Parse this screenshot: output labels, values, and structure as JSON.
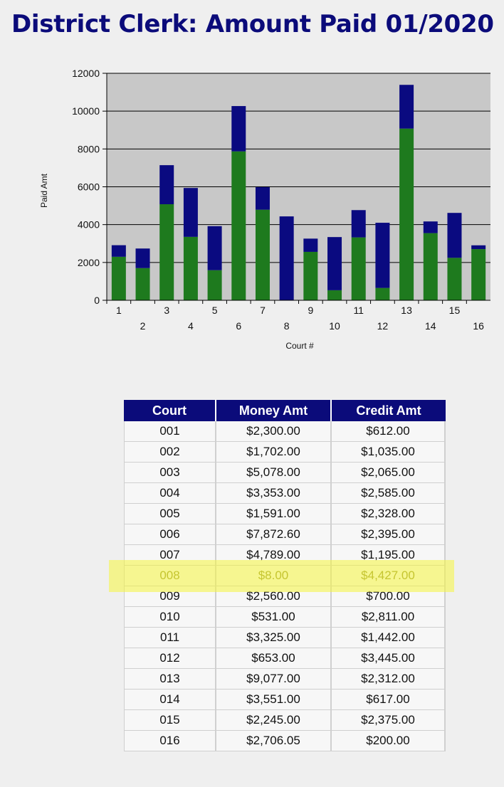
{
  "page": {
    "title": "District Clerk: Amount Paid 01/2020"
  },
  "chart_data": {
    "type": "bar",
    "stacked": true,
    "categories": [
      "1",
      "2",
      "3",
      "4",
      "5",
      "6",
      "7",
      "8",
      "9",
      "10",
      "11",
      "12",
      "13",
      "14",
      "15",
      "16"
    ],
    "series": [
      {
        "values": [
          2300,
          1702,
          5078,
          3353,
          1591,
          7872.6,
          4789,
          8,
          2560,
          531,
          3325,
          653,
          9077,
          3551,
          2245,
          2706.05
        ],
        "color": "#1e7a1e"
      },
      {
        "values": [
          612,
          1035,
          2065,
          2585,
          2328,
          2395,
          1195,
          4427,
          700,
          2811,
          1442,
          3445,
          2312,
          617,
          2375,
          200
        ],
        "color": "#0a0a80"
      }
    ],
    "xlabel": "Court #",
    "ylabel": "Paid Amt",
    "ylim": [
      0,
      12000
    ],
    "yticks": [
      0,
      2000,
      4000,
      6000,
      8000,
      10000,
      12000
    ],
    "grid": true,
    "plot_background": "#c8c8c8"
  },
  "table": {
    "headers": [
      "Court",
      "Money Amt",
      "Credit Amt"
    ],
    "rows": [
      [
        "001",
        "$2,300.00",
        "$612.00"
      ],
      [
        "002",
        "$1,702.00",
        "$1,035.00"
      ],
      [
        "003",
        "$5,078.00",
        "$2,065.00"
      ],
      [
        "004",
        "$3,353.00",
        "$2,585.00"
      ],
      [
        "005",
        "$1,591.00",
        "$2,328.00"
      ],
      [
        "006",
        "$7,872.60",
        "$2,395.00"
      ],
      [
        "007",
        "$4,789.00",
        "$1,195.00"
      ],
      [
        "008",
        "$8.00",
        "$4,427.00"
      ],
      [
        "009",
        "$2,560.00",
        "$700.00"
      ],
      [
        "010",
        "$531.00",
        "$2,811.00"
      ],
      [
        "011",
        "$3,325.00",
        "$1,442.00"
      ],
      [
        "012",
        "$653.00",
        "$3,445.00"
      ],
      [
        "013",
        "$9,077.00",
        "$2,312.00"
      ],
      [
        "014",
        "$3,551.00",
        "$617.00"
      ],
      [
        "015",
        "$2,245.00",
        "$2,375.00"
      ],
      [
        "016",
        "$2,706.05",
        "$200.00"
      ]
    ],
    "highlighted_row": "008",
    "header_color": "#0b0b7a",
    "highlight_color": "#f5f53c"
  }
}
